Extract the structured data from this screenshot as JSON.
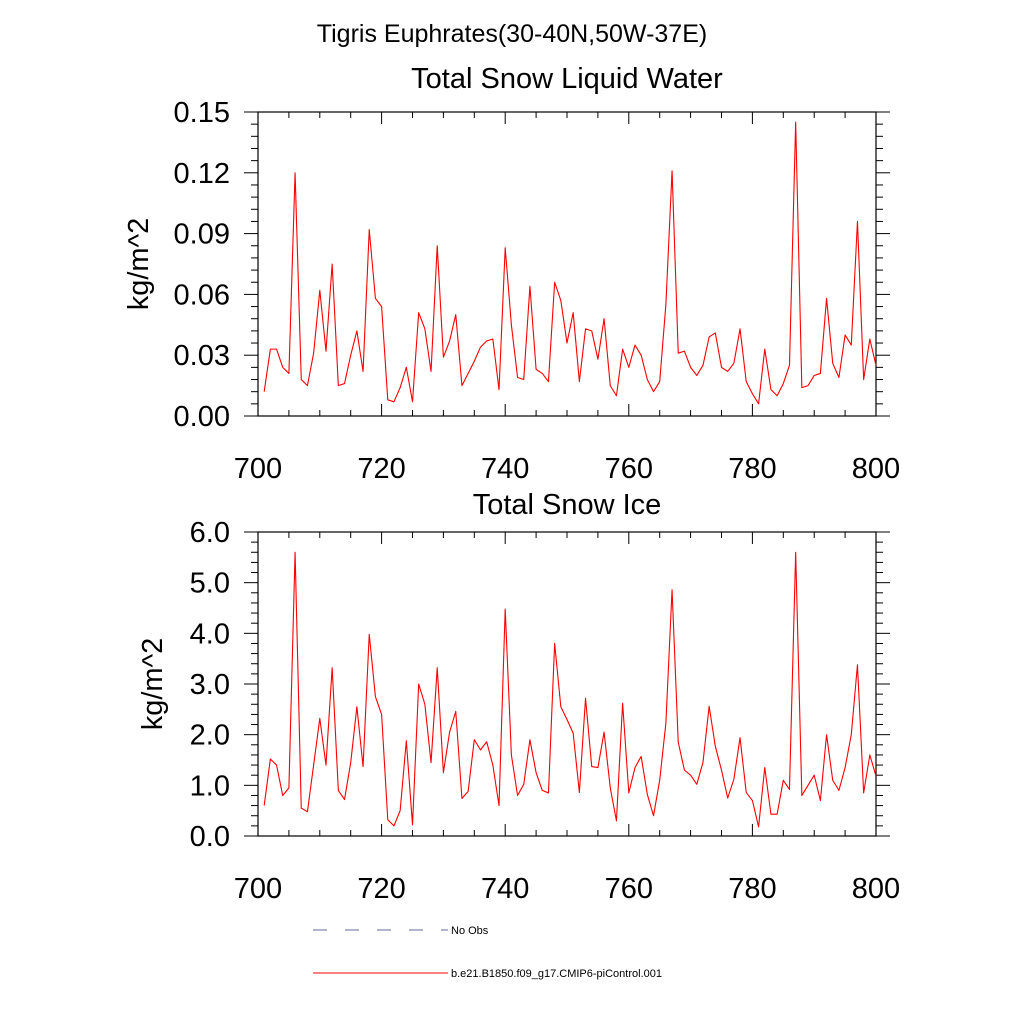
{
  "page": {
    "title": "Tigris Euphrates(30-40N,50W-37E)"
  },
  "chart_data": [
    {
      "type": "line",
      "title": "Total Snow Liquid Water",
      "ylabel": "kg/m^2",
      "xlabel": "",
      "xlim": [
        700,
        800
      ],
      "ylim": [
        0,
        0.15
      ],
      "xticks": [
        "700",
        "720",
        "740",
        "760",
        "780",
        "800"
      ],
      "yticks": [
        "0.00",
        "0.03",
        "0.06",
        "0.09",
        "0.12",
        "0.15"
      ],
      "x": [
        701,
        702,
        703,
        704,
        705,
        706,
        707,
        708,
        709,
        710,
        711,
        712,
        713,
        714,
        715,
        716,
        717,
        718,
        719,
        720,
        721,
        722,
        723,
        724,
        725,
        726,
        727,
        728,
        729,
        730,
        731,
        732,
        733,
        734,
        735,
        736,
        737,
        738,
        739,
        740,
        741,
        742,
        743,
        744,
        745,
        746,
        747,
        748,
        749,
        750,
        751,
        752,
        753,
        754,
        755,
        756,
        757,
        758,
        759,
        760,
        761,
        762,
        763,
        764,
        765,
        766,
        767,
        768,
        769,
        770,
        771,
        772,
        773,
        774,
        775,
        776,
        777,
        778,
        779,
        780,
        781,
        782,
        783,
        784,
        785,
        786,
        787,
        788,
        789,
        790,
        791,
        792,
        793,
        794,
        795,
        796,
        797,
        798,
        799,
        800
      ],
      "series": [
        {
          "name": "b.e21.B1850.f09_g17.CMIP6-piControl.001",
          "color": "#ff0000",
          "values": [
            0.012,
            0.033,
            0.033,
            0.024,
            0.021,
            0.12,
            0.018,
            0.015,
            0.031,
            0.062,
            0.032,
            0.075,
            0.015,
            0.016,
            0.03,
            0.042,
            0.022,
            0.092,
            0.058,
            0.054,
            0.008,
            0.007,
            0.014,
            0.024,
            0.007,
            0.051,
            0.043,
            0.022,
            0.084,
            0.029,
            0.037,
            0.05,
            0.015,
            0.021,
            0.027,
            0.034,
            0.037,
            0.038,
            0.013,
            0.083,
            0.045,
            0.019,
            0.018,
            0.064,
            0.023,
            0.021,
            0.017,
            0.066,
            0.057,
            0.036,
            0.051,
            0.017,
            0.043,
            0.042,
            0.028,
            0.048,
            0.015,
            0.01,
            0.033,
            0.024,
            0.035,
            0.03,
            0.018,
            0.012,
            0.017,
            0.055,
            0.121,
            0.031,
            0.032,
            0.024,
            0.02,
            0.025,
            0.039,
            0.041,
            0.024,
            0.022,
            0.026,
            0.043,
            0.017,
            0.011,
            0.006,
            0.033,
            0.013,
            0.01,
            0.016,
            0.025,
            0.145,
            0.014,
            0.015,
            0.02,
            0.021,
            0.058,
            0.026,
            0.019,
            0.04,
            0.035,
            0.096,
            0.018,
            0.038,
            0.025
          ]
        }
      ]
    },
    {
      "type": "line",
      "title": "Total Snow Ice",
      "ylabel": "kg/m^2",
      "xlabel": "",
      "xlim": [
        700,
        800
      ],
      "ylim": [
        0,
        6
      ],
      "xticks": [
        "700",
        "720",
        "740",
        "760",
        "780",
        "800"
      ],
      "yticks": [
        "0.0",
        "1.0",
        "2.0",
        "3.0",
        "4.0",
        "5.0",
        "6.0"
      ],
      "x": [
        701,
        702,
        703,
        704,
        705,
        706,
        707,
        708,
        709,
        710,
        711,
        712,
        713,
        714,
        715,
        716,
        717,
        718,
        719,
        720,
        721,
        722,
        723,
        724,
        725,
        726,
        727,
        728,
        729,
        730,
        731,
        732,
        733,
        734,
        735,
        736,
        737,
        738,
        739,
        740,
        741,
        742,
        743,
        744,
        745,
        746,
        747,
        748,
        749,
        750,
        751,
        752,
        753,
        754,
        755,
        756,
        757,
        758,
        759,
        760,
        761,
        762,
        763,
        764,
        765,
        766,
        767,
        768,
        769,
        770,
        771,
        772,
        773,
        774,
        775,
        776,
        777,
        778,
        779,
        780,
        781,
        782,
        783,
        784,
        785,
        786,
        787,
        788,
        789,
        790,
        791,
        792,
        793,
        794,
        795,
        796,
        797,
        798,
        799,
        800
      ],
      "series": [
        {
          "name": "b.e21.B1850.f09_g17.CMIP6-piControl.001",
          "color": "#ff0000",
          "values": [
            0.6,
            1.52,
            1.4,
            0.8,
            0.95,
            5.6,
            0.55,
            0.48,
            1.4,
            2.32,
            1.4,
            3.32,
            0.9,
            0.72,
            1.45,
            2.55,
            1.37,
            3.98,
            2.75,
            2.4,
            0.32,
            0.2,
            0.5,
            1.88,
            0.22,
            3.0,
            2.6,
            1.45,
            3.32,
            1.25,
            2.05,
            2.46,
            0.74,
            0.88,
            1.9,
            1.7,
            1.86,
            1.4,
            0.6,
            4.48,
            1.6,
            0.8,
            1.02,
            1.9,
            1.25,
            0.9,
            0.85,
            3.8,
            2.55,
            2.3,
            2.03,
            0.86,
            2.72,
            1.37,
            1.35,
            2.05,
            0.95,
            0.3,
            2.62,
            0.85,
            1.35,
            1.57,
            0.82,
            0.4,
            1.1,
            2.23,
            4.86,
            1.85,
            1.3,
            1.2,
            1.02,
            1.45,
            2.56,
            1.77,
            1.3,
            0.75,
            1.12,
            1.94,
            0.86,
            0.7,
            0.18,
            1.35,
            0.43,
            0.43,
            1.1,
            0.92,
            5.6,
            0.8,
            1.0,
            1.2,
            0.7,
            2.0,
            1.1,
            0.9,
            1.35,
            2.0,
            3.38,
            0.85,
            1.6,
            1.18
          ]
        }
      ]
    }
  ],
  "legend": {
    "items": [
      {
        "label": "No Obs",
        "style": "dashed",
        "color": "#6a6a9a"
      },
      {
        "label": "b.e21.B1850.f09_g17.CMIP6-piControl.001",
        "style": "solid",
        "color": "#ff0000"
      }
    ]
  }
}
